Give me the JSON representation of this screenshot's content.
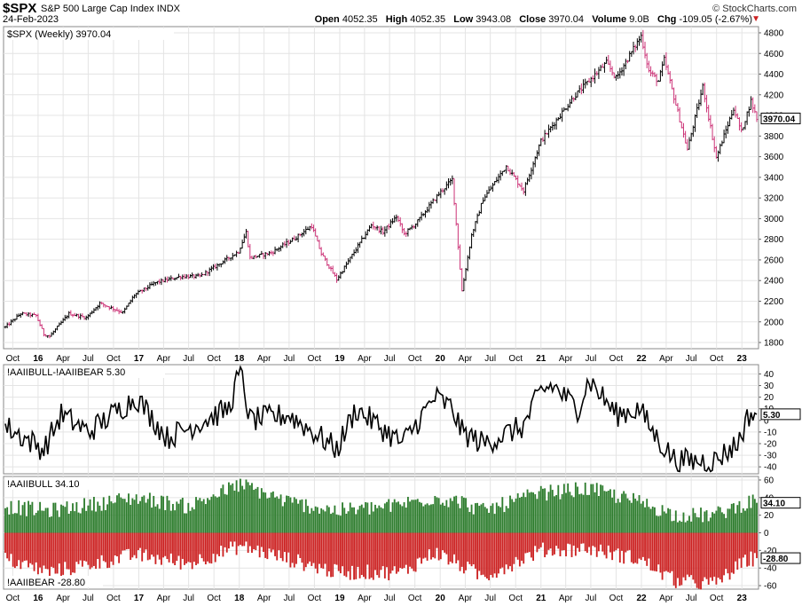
{
  "header": {
    "symbol": "$SPX",
    "name": "S&P 500 Large Cap Index",
    "exchange": "INDX",
    "date": "24-Feb-2023",
    "brand": "© StockCharts.com",
    "open_label": "Open",
    "open": "4052.35",
    "high_label": "High",
    "high": "4052.35",
    "low_label": "Low",
    "low": "3943.08",
    "close_label": "Close",
    "close": "3970.04",
    "volume_label": "Volume",
    "volume": "9.0B",
    "chg_label": "Chg",
    "chg": "-109.05 (-2.67%)",
    "chg_arrow": "▼"
  },
  "colors": {
    "up_bar": "#000000",
    "down_bar": "#cc3377",
    "line": "#000000",
    "bull_bar": "#2e7d2e",
    "bear_bar": "#cc2222",
    "grid": "#e4e4e4"
  },
  "chart_data": [
    {
      "type": "ohlc",
      "label": "$SPX (Weekly) 3970.04",
      "last_value": "3970.04",
      "y_ticks": [
        1800,
        2000,
        2200,
        2400,
        2600,
        2800,
        3000,
        3200,
        3400,
        3600,
        3800,
        4000,
        4200,
        4400,
        4600,
        4800
      ],
      "ylim": [
        1740,
        4860
      ],
      "x_tick_labels": [
        "Oct",
        "16",
        "Apr",
        "Jul",
        "Oct",
        "17",
        "Apr",
        "Jul",
        "Oct",
        "18",
        "Apr",
        "Jul",
        "Oct",
        "19",
        "Apr",
        "Jul",
        "Oct",
        "20",
        "Apr",
        "Jul",
        "Oct",
        "21",
        "Apr",
        "Jul",
        "Oct",
        "22",
        "Apr",
        "Jul",
        "Oct",
        "23"
      ],
      "year_labels": [
        "16",
        "17",
        "18",
        "19",
        "20",
        "21",
        "22",
        "23"
      ],
      "grid": true,
      "anchors": [
        [
          "2015-09-04",
          1950
        ],
        [
          "2015-10-30",
          2080
        ],
        [
          "2015-12-25",
          2060
        ],
        [
          "2016-01-22",
          1880
        ],
        [
          "2016-02-12",
          1860
        ],
        [
          "2016-04-22",
          2080
        ],
        [
          "2016-06-24",
          2040
        ],
        [
          "2016-08-12",
          2180
        ],
        [
          "2016-11-04",
          2090
        ],
        [
          "2016-12-16",
          2260
        ],
        [
          "2017-03-03",
          2380
        ],
        [
          "2017-06-02",
          2440
        ],
        [
          "2017-08-11",
          2440
        ],
        [
          "2017-12-29",
          2680
        ],
        [
          "2018-01-26",
          2870
        ],
        [
          "2018-02-09",
          2620
        ],
        [
          "2018-04-27",
          2670
        ],
        [
          "2018-07-27",
          2820
        ],
        [
          "2018-09-21",
          2930
        ],
        [
          "2018-10-26",
          2660
        ],
        [
          "2018-12-21",
          2410
        ],
        [
          "2019-04-26",
          2940
        ],
        [
          "2019-06-07",
          2870
        ],
        [
          "2019-07-26",
          3020
        ],
        [
          "2019-08-23",
          2850
        ],
        [
          "2019-10-04",
          2950
        ],
        [
          "2019-12-27",
          3240
        ],
        [
          "2020-02-14",
          3380
        ],
        [
          "2020-02-28",
          2950
        ],
        [
          "2020-03-20",
          2300
        ],
        [
          "2020-04-24",
          2840
        ],
        [
          "2020-06-05",
          3190
        ],
        [
          "2020-08-28",
          3510
        ],
        [
          "2020-10-30",
          3270
        ],
        [
          "2020-12-31",
          3750
        ],
        [
          "2021-04-30",
          4180
        ],
        [
          "2021-08-27",
          4510
        ],
        [
          "2021-10-01",
          4360
        ],
        [
          "2021-12-31",
          4770
        ],
        [
          "2022-01-28",
          4430
        ],
        [
          "2022-03-04",
          4330
        ],
        [
          "2022-03-25",
          4540
        ],
        [
          "2022-06-17",
          3670
        ],
        [
          "2022-08-12",
          4280
        ],
        [
          "2022-09-30",
          3590
        ],
        [
          "2022-12-02",
          4070
        ],
        [
          "2022-12-30",
          3840
        ],
        [
          "2023-02-03",
          4140
        ],
        [
          "2023-02-24",
          3970
        ]
      ]
    },
    {
      "type": "line",
      "label": "!AAIIBULL-!AAIIBEAR 5.30",
      "last_value": "5.30",
      "y_ticks": [
        -40,
        -30,
        -20,
        -10,
        0,
        10,
        20,
        30,
        40
      ],
      "ylim": [
        -46,
        48
      ],
      "anchors": [
        [
          "2015-09-04",
          -5
        ],
        [
          "2016-01-22",
          -25
        ],
        [
          "2016-03-25",
          5
        ],
        [
          "2016-07-01",
          -10
        ],
        [
          "2016-12-23",
          20
        ],
        [
          "2017-04-14",
          -15
        ],
        [
          "2017-11-24",
          10
        ],
        [
          "2018-01-05",
          44
        ],
        [
          "2018-02-09",
          0
        ],
        [
          "2018-06-29",
          5
        ],
        [
          "2018-10-26",
          -15
        ],
        [
          "2018-12-21",
          -25
        ],
        [
          "2019-03-01",
          10
        ],
        [
          "2019-08-16",
          -20
        ],
        [
          "2019-12-13",
          20
        ],
        [
          "2020-02-14",
          10
        ],
        [
          "2020-03-20",
          -10
        ],
        [
          "2020-06-05",
          -20
        ],
        [
          "2020-10-30",
          -5
        ],
        [
          "2020-12-31",
          25
        ],
        [
          "2021-02-12",
          30
        ],
        [
          "2021-05-14",
          10
        ],
        [
          "2021-06-25",
          35
        ],
        [
          "2021-10-01",
          5
        ],
        [
          "2021-12-24",
          10
        ],
        [
          "2022-02-25",
          -15
        ],
        [
          "2022-05-06",
          -35
        ],
        [
          "2022-09-23",
          -35
        ],
        [
          "2022-12-16",
          -20
        ],
        [
          "2023-01-27",
          5
        ],
        [
          "2023-02-24",
          5.3
        ]
      ]
    },
    {
      "type": "bar",
      "label": "!AAIIBULL 34.10",
      "bottom_label": "!AAIIBEAR -28.80",
      "bull_last": "34.10",
      "bear_last": "-28.80",
      "y_ticks": [
        -60,
        -40,
        -20,
        0,
        20,
        40,
        60
      ],
      "ylim": [
        -64,
        64
      ],
      "bull_anchors": [
        [
          "2015-09-04",
          30
        ],
        [
          "2016-02-12",
          25
        ],
        [
          "2016-12-23",
          40
        ],
        [
          "2017-06-30",
          30
        ],
        [
          "2018-01-05",
          55
        ],
        [
          "2018-06-29",
          35
        ],
        [
          "2018-12-21",
          25
        ],
        [
          "2019-06-28",
          30
        ],
        [
          "2019-12-13",
          40
        ],
        [
          "2020-03-20",
          35
        ],
        [
          "2020-06-05",
          25
        ],
        [
          "2020-12-31",
          45
        ],
        [
          "2021-06-25",
          50
        ],
        [
          "2021-12-24",
          35
        ],
        [
          "2022-05-06",
          20
        ],
        [
          "2022-09-23",
          20
        ],
        [
          "2023-01-27",
          35
        ],
        [
          "2023-02-24",
          34.1
        ]
      ],
      "bear_anchors": [
        [
          "2015-09-04",
          -30
        ],
        [
          "2016-02-12",
          -45
        ],
        [
          "2016-12-23",
          -25
        ],
        [
          "2017-06-30",
          -35
        ],
        [
          "2018-01-05",
          -15
        ],
        [
          "2018-06-29",
          -30
        ],
        [
          "2018-12-21",
          -45
        ],
        [
          "2019-08-16",
          -45
        ],
        [
          "2019-12-13",
          -22
        ],
        [
          "2020-06-05",
          -50
        ],
        [
          "2020-12-31",
          -20
        ],
        [
          "2021-06-25",
          -18
        ],
        [
          "2021-12-24",
          -30
        ],
        [
          "2022-05-06",
          -55
        ],
        [
          "2022-09-23",
          -58
        ],
        [
          "2023-01-27",
          -30
        ],
        [
          "2023-02-24",
          -28.8
        ]
      ]
    }
  ]
}
